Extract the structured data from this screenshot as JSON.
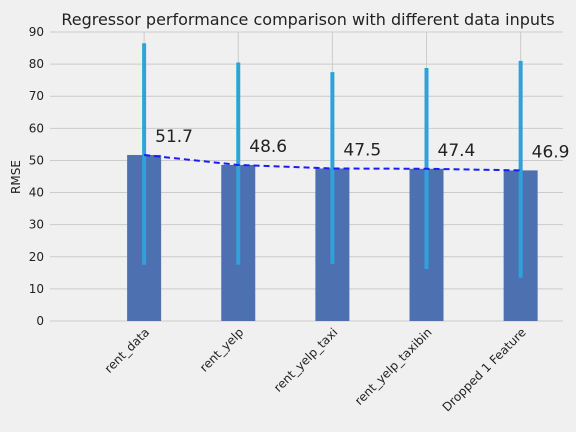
{
  "chart_data": {
    "type": "bar",
    "title": "Regressor performance comparison with different data inputs",
    "xlabel": "",
    "ylabel": "RMSE",
    "ylim": [
      0,
      90
    ],
    "yticks": [
      0,
      10,
      20,
      30,
      40,
      50,
      60,
      70,
      80,
      90
    ],
    "categories": [
      "rent_data",
      "rent_yelp",
      "rent_yelp_taxi",
      "rent_yelp_taxibin",
      "Dropped 1 Feature"
    ],
    "values": [
      51.7,
      48.6,
      47.5,
      47.4,
      46.9
    ],
    "value_labels": [
      "51.7",
      "48.6",
      "47.5",
      "47.4",
      "46.9"
    ],
    "error_low": [
      17.5,
      17.5,
      17.8,
      16.2,
      13.5
    ],
    "error_high": [
      86.5,
      80.5,
      77.5,
      78.8,
      81.0
    ],
    "grid": true,
    "trend_line": "dashed",
    "colors": {
      "background": "#f0f0f0",
      "bar": "#4c70b0",
      "error_bar": "#30a2da",
      "trend_line": "#1a1aff",
      "grid": "#cbcbcb",
      "text": "#222222"
    }
  }
}
